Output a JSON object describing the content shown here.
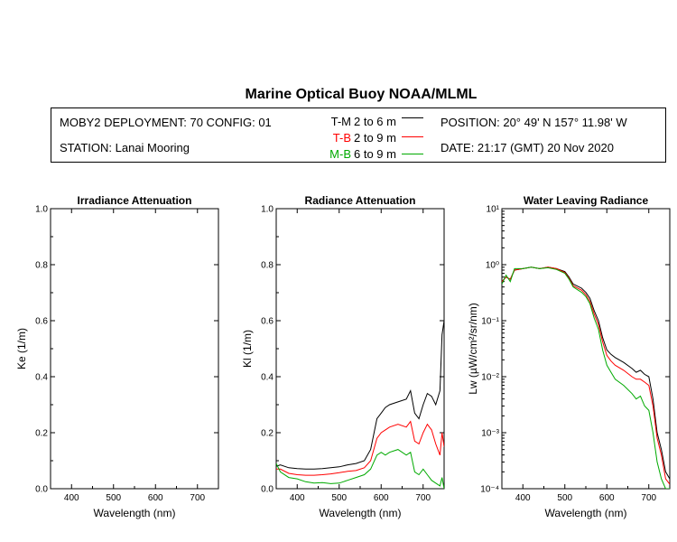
{
  "title": "Marine Optical Buoy NOAA/MLML",
  "info": {
    "deployment": "MOBY2 DEPLOYMENT: 70 CONFIG: 01",
    "station": "STATION: Lanai Mooring",
    "position": "POSITION: 20° 49' N   157° 11.98' W",
    "date": "DATE: 21:17 (GMT) 20 Nov 2020",
    "legend": [
      {
        "key": "T-M",
        "range": "2 to 6  m",
        "color": "#000000"
      },
      {
        "key": "T-B",
        "range": "2 to 9  m",
        "color": "#ff0000"
      },
      {
        "key": "M-B",
        "range": "6 to 9  m",
        "color": "#00aa00"
      }
    ]
  },
  "chart_data": [
    {
      "type": "line",
      "title": "Irradiance Attenuation",
      "xlabel": "Wavelength (nm)",
      "ylabel": "Ke  (1/m)",
      "xlim": [
        350,
        750
      ],
      "ylim": [
        0,
        1.0
      ],
      "xticks": [
        "400",
        "500",
        "600",
        "700"
      ],
      "yticks": [
        "0.0",
        "0.2",
        "0.4",
        "0.6",
        "0.8",
        "1.0"
      ],
      "series": []
    },
    {
      "type": "line",
      "title": "Radiance Attenuation",
      "xlabel": "Wavelength (nm)",
      "ylabel": "Kl  (1/m)",
      "xlim": [
        350,
        750
      ],
      "ylim": [
        0,
        1.0
      ],
      "xticks": [
        "400",
        "500",
        "600",
        "700"
      ],
      "yticks": [
        "0.0",
        "0.2",
        "0.4",
        "0.6",
        "0.8",
        "1.0"
      ],
      "series": [
        {
          "name": "T-M",
          "color": "#000000",
          "x": [
            350,
            360,
            380,
            400,
            420,
            440,
            460,
            480,
            500,
            520,
            540,
            560,
            575,
            590,
            600,
            610,
            620,
            640,
            660,
            670,
            680,
            690,
            700,
            710,
            720,
            730,
            740,
            745,
            750
          ],
          "y": [
            0.08,
            0.085,
            0.075,
            0.072,
            0.07,
            0.07,
            0.072,
            0.075,
            0.078,
            0.085,
            0.09,
            0.1,
            0.14,
            0.25,
            0.27,
            0.29,
            0.3,
            0.31,
            0.32,
            0.35,
            0.27,
            0.25,
            0.3,
            0.34,
            0.33,
            0.3,
            0.35,
            0.55,
            0.6
          ]
        },
        {
          "name": "T-B",
          "color": "#ff0000",
          "x": [
            350,
            360,
            380,
            400,
            420,
            440,
            460,
            480,
            500,
            520,
            540,
            560,
            575,
            590,
            600,
            610,
            620,
            640,
            660,
            670,
            680,
            690,
            700,
            710,
            720,
            730,
            740,
            745,
            750
          ],
          "y": [
            0.07,
            0.07,
            0.055,
            0.05,
            0.048,
            0.048,
            0.05,
            0.053,
            0.057,
            0.062,
            0.065,
            0.075,
            0.1,
            0.18,
            0.2,
            0.21,
            0.22,
            0.23,
            0.22,
            0.24,
            0.17,
            0.16,
            0.2,
            0.23,
            0.21,
            0.16,
            0.12,
            0.2,
            0.15
          ]
        },
        {
          "name": "M-B",
          "color": "#00aa00",
          "x": [
            350,
            360,
            380,
            400,
            420,
            440,
            460,
            480,
            500,
            520,
            540,
            560,
            575,
            590,
            600,
            610,
            620,
            640,
            660,
            670,
            680,
            690,
            700,
            710,
            720,
            730,
            740,
            745,
            750
          ],
          "y": [
            0.09,
            0.06,
            0.04,
            0.035,
            0.025,
            0.02,
            0.022,
            0.018,
            0.02,
            0.03,
            0.04,
            0.05,
            0.07,
            0.12,
            0.13,
            0.12,
            0.13,
            0.14,
            0.12,
            0.13,
            0.06,
            0.05,
            0.07,
            0.05,
            0.03,
            0.02,
            0.01,
            0.04,
            0.0
          ]
        }
      ]
    },
    {
      "type": "line",
      "title": "Water Leaving Radiance",
      "xlabel": "Wavelength (nm)",
      "ylabel": "Lw  (µW/cm²/sr/nm)",
      "xlim": [
        350,
        750
      ],
      "yscale": "log",
      "ylim": [
        0.0001,
        10
      ],
      "xticks": [
        "400",
        "500",
        "600",
        "700"
      ],
      "yticks": [
        "10⁻⁴",
        "10⁻³",
        "10⁻²",
        "10⁻¹",
        "10⁰",
        "10¹"
      ],
      "series": [
        {
          "name": "T-M",
          "color": "#000000",
          "x": [
            350,
            360,
            370,
            380,
            400,
            420,
            440,
            460,
            480,
            500,
            510,
            520,
            540,
            550,
            560,
            570,
            580,
            590,
            600,
            610,
            620,
            640,
            660,
            670,
            680,
            690,
            700,
            710,
            720,
            730,
            740,
            750
          ],
          "y": [
            0.5,
            0.6,
            0.55,
            0.8,
            0.85,
            0.9,
            0.85,
            0.9,
            0.85,
            0.75,
            0.6,
            0.45,
            0.38,
            0.32,
            0.25,
            0.15,
            0.1,
            0.05,
            0.03,
            0.025,
            0.022,
            0.018,
            0.014,
            0.012,
            0.013,
            0.011,
            0.01,
            0.004,
            0.001,
            0.0005,
            0.0002,
            0.00015
          ]
        },
        {
          "name": "T-B",
          "color": "#ff0000",
          "x": [
            350,
            360,
            370,
            380,
            400,
            420,
            440,
            460,
            480,
            500,
            510,
            520,
            540,
            550,
            560,
            570,
            580,
            590,
            600,
            610,
            620,
            640,
            660,
            670,
            680,
            690,
            700,
            710,
            720,
            730,
            740,
            750
          ],
          "y": [
            0.5,
            0.6,
            0.55,
            0.8,
            0.85,
            0.9,
            0.85,
            0.9,
            0.85,
            0.72,
            0.57,
            0.42,
            0.35,
            0.29,
            0.22,
            0.13,
            0.085,
            0.042,
            0.024,
            0.019,
            0.016,
            0.013,
            0.01,
            0.009,
            0.009,
            0.008,
            0.007,
            0.003,
            0.0008,
            0.0004,
            0.00015,
            0.00012
          ]
        },
        {
          "name": "M-B",
          "color": "#00aa00",
          "x": [
            350,
            360,
            370,
            380,
            400,
            420,
            440,
            460,
            480,
            500,
            510,
            520,
            540,
            550,
            560,
            570,
            580,
            590,
            600,
            610,
            620,
            640,
            660,
            670,
            680,
            690,
            700,
            710,
            720,
            730,
            740,
            750
          ],
          "y": [
            0.45,
            0.65,
            0.5,
            0.85,
            0.85,
            0.9,
            0.85,
            0.88,
            0.82,
            0.7,
            0.55,
            0.4,
            0.32,
            0.27,
            0.2,
            0.11,
            0.07,
            0.03,
            0.016,
            0.012,
            0.009,
            0.007,
            0.005,
            0.004,
            0.0045,
            0.003,
            0.0025,
            0.001,
            0.0003,
            0.00015,
            0.0001,
            0.0001
          ]
        }
      ]
    }
  ]
}
